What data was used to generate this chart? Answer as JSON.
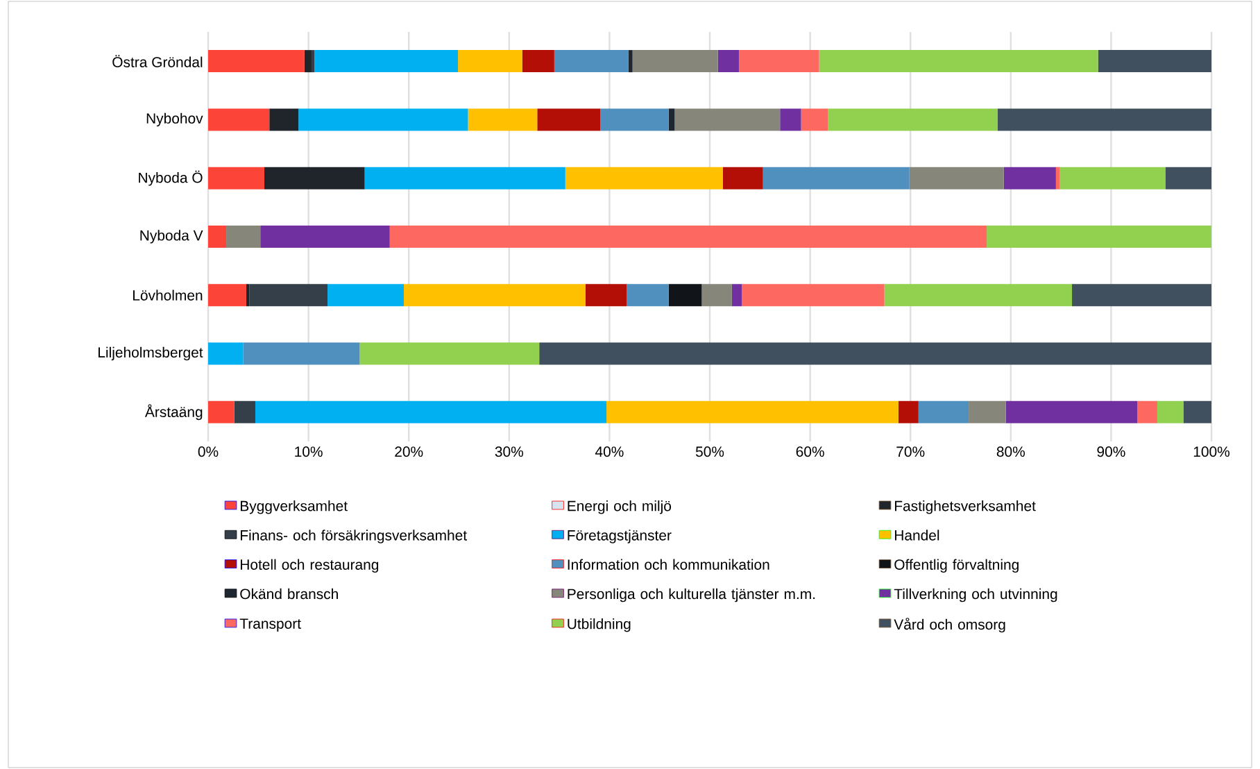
{
  "chart_data": {
    "type": "bar",
    "orientation": "horizontal",
    "stacked": true,
    "grid": "x",
    "legend": "bottom",
    "categories": [
      "Östra Gröndal",
      "Nybohov",
      "Nyboda Ö",
      "Nyboda V",
      "Lövholmen",
      "Liljeholmsberget",
      "Årstaäng"
    ],
    "xlim": [
      0,
      100
    ],
    "xticks": [
      {
        "value": 0,
        "label": "0%"
      },
      {
        "value": 10,
        "label": "10%"
      },
      {
        "value": 20,
        "label": "20%"
      },
      {
        "value": 30,
        "label": "30%"
      },
      {
        "value": 40,
        "label": "40%"
      },
      {
        "value": 50,
        "label": "50%"
      },
      {
        "value": 60,
        "label": "60%"
      },
      {
        "value": 70,
        "label": "70%"
      },
      {
        "value": 80,
        "label": "80%"
      },
      {
        "value": 90,
        "label": "90%"
      },
      {
        "value": 100,
        "label": "100%"
      }
    ],
    "series": [
      {
        "name": "Byggverksamhet",
        "color": "#fc4439",
        "values": [
          9.6,
          6.1,
          5.6,
          1.8,
          3.8,
          0,
          2.6
        ]
      },
      {
        "name": "Energi och miljö",
        "color": "#d6e4f0",
        "values": [
          0,
          0,
          0,
          0,
          0,
          0,
          0
        ]
      },
      {
        "name": "Fastighetsverksamhet",
        "color": "#1f252b",
        "values": [
          0.7,
          2.9,
          10.0,
          0,
          0.3,
          0,
          0
        ]
      },
      {
        "name": "Finans- och försäkringsverksamhet",
        "color": "#343f4a",
        "values": [
          0.3,
          0,
          0,
          0,
          7.8,
          0,
          2.1
        ]
      },
      {
        "name": "Företagstjänster",
        "color": "#00b0f0",
        "values": [
          14.3,
          16.9,
          20.0,
          0,
          7.6,
          3.5,
          35.0
        ]
      },
      {
        "name": "Handel",
        "color": "#ffc000",
        "values": [
          6.4,
          6.9,
          15.7,
          0,
          18.1,
          0,
          29.1
        ]
      },
      {
        "name": "Hotell och restaurang",
        "color": "#b30f07",
        "values": [
          3.2,
          6.3,
          4.0,
          0,
          4.1,
          0,
          2.0
        ]
      },
      {
        "name": "Information och kommunikation",
        "color": "#5090bf",
        "values": [
          7.4,
          6.8,
          14.6,
          0,
          4.2,
          11.6,
          5.0
        ]
      },
      {
        "name": "Offentlig förvaltning",
        "color": "#111418",
        "values": [
          0,
          0,
          0,
          0,
          3.3,
          0,
          0
        ]
      },
      {
        "name": "Okänd bransch",
        "color": "#1e2730",
        "values": [
          0.4,
          0.6,
          0,
          0,
          0,
          0,
          0
        ]
      },
      {
        "name": "Personliga och kulturella tjänster m.m.",
        "color": "#87867b",
        "values": [
          8.5,
          10.5,
          9.4,
          3.4,
          3.0,
          0,
          3.7
        ]
      },
      {
        "name": "Tillverkning och utvinning",
        "color": "#7030a0",
        "values": [
          2.1,
          2.1,
          5.2,
          12.9,
          1.0,
          0,
          13.1
        ]
      },
      {
        "name": "Transport",
        "color": "#fd6860",
        "values": [
          8.0,
          2.7,
          0.4,
          59.5,
          14.2,
          0,
          2.0
        ]
      },
      {
        "name": "Utbildning",
        "color": "#92d050",
        "values": [
          27.8,
          16.9,
          10.5,
          22.4,
          18.7,
          17.9,
          2.6
        ]
      },
      {
        "name": "Vård och omsorg",
        "color": "#41505e",
        "values": [
          11.3,
          21.3,
          4.6,
          0,
          13.9,
          67.0,
          2.8
        ]
      }
    ]
  }
}
